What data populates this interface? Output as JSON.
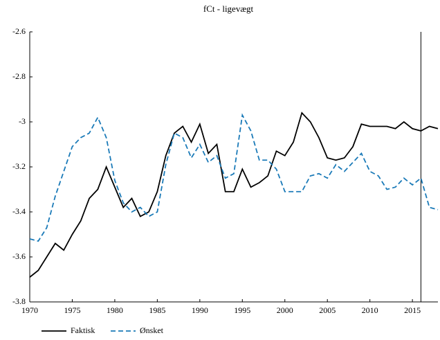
{
  "chart_data": {
    "type": "line",
    "title": "fCt - ligevægt",
    "x": [
      1970,
      1971,
      1972,
      1973,
      1974,
      1975,
      1976,
      1977,
      1978,
      1979,
      1980,
      1981,
      1982,
      1983,
      1984,
      1985,
      1986,
      1987,
      1988,
      1989,
      1990,
      1991,
      1992,
      1993,
      1994,
      1995,
      1996,
      1997,
      1998,
      1999,
      2000,
      2001,
      2002,
      2003,
      2004,
      2005,
      2006,
      2007,
      2008,
      2009,
      2010,
      2011,
      2012,
      2013,
      2014,
      2015,
      2016,
      2017,
      2018
    ],
    "series": [
      {
        "name": "Faktisk",
        "color": "#000000",
        "dash": false,
        "values": [
          -3.69,
          -3.66,
          -3.6,
          -3.54,
          -3.57,
          -3.5,
          -3.44,
          -3.34,
          -3.3,
          -3.2,
          -3.29,
          -3.38,
          -3.34,
          -3.42,
          -3.4,
          -3.31,
          -3.15,
          -3.05,
          -3.02,
          -3.09,
          -3.01,
          -3.14,
          -3.1,
          -3.31,
          -3.31,
          -3.21,
          -3.29,
          -3.27,
          -3.24,
          -3.13,
          -3.15,
          -3.09,
          -2.96,
          -3.0,
          -3.07,
          -3.16,
          -3.17,
          -3.16,
          -3.11,
          -3.01,
          -3.02,
          -3.02,
          -3.02,
          -3.03,
          -3.0,
          -3.03,
          -3.04,
          -3.02,
          -3.03
        ]
      },
      {
        "name": "Ønsket",
        "color": "#1a7ab8",
        "dash": true,
        "values": [
          -3.52,
          -3.53,
          -3.47,
          -3.33,
          -3.22,
          -3.11,
          -3.07,
          -3.05,
          -2.98,
          -3.07,
          -3.26,
          -3.36,
          -3.4,
          -3.38,
          -3.42,
          -3.4,
          -3.19,
          -3.05,
          -3.07,
          -3.16,
          -3.1,
          -3.18,
          -3.15,
          -3.25,
          -3.23,
          -2.97,
          -3.04,
          -3.17,
          -3.17,
          -3.21,
          -3.31,
          -3.31,
          -3.31,
          -3.24,
          -3.23,
          -3.25,
          -3.19,
          -3.22,
          -3.18,
          -3.14,
          -3.22,
          -3.24,
          -3.3,
          -3.29,
          -3.25,
          -3.28,
          -3.25,
          -3.38,
          -3.39
        ]
      }
    ],
    "xlim": [
      1970,
      2018
    ],
    "xticks": [
      1970,
      1975,
      1980,
      1985,
      1990,
      1995,
      2000,
      2005,
      2010,
      2015
    ],
    "ylim": [
      -3.8,
      -2.6
    ],
    "yticks": [
      -2.6,
      -2.8,
      -3,
      -3.2,
      -3.4,
      -3.6,
      -3.8
    ],
    "vline_x": 2016
  }
}
